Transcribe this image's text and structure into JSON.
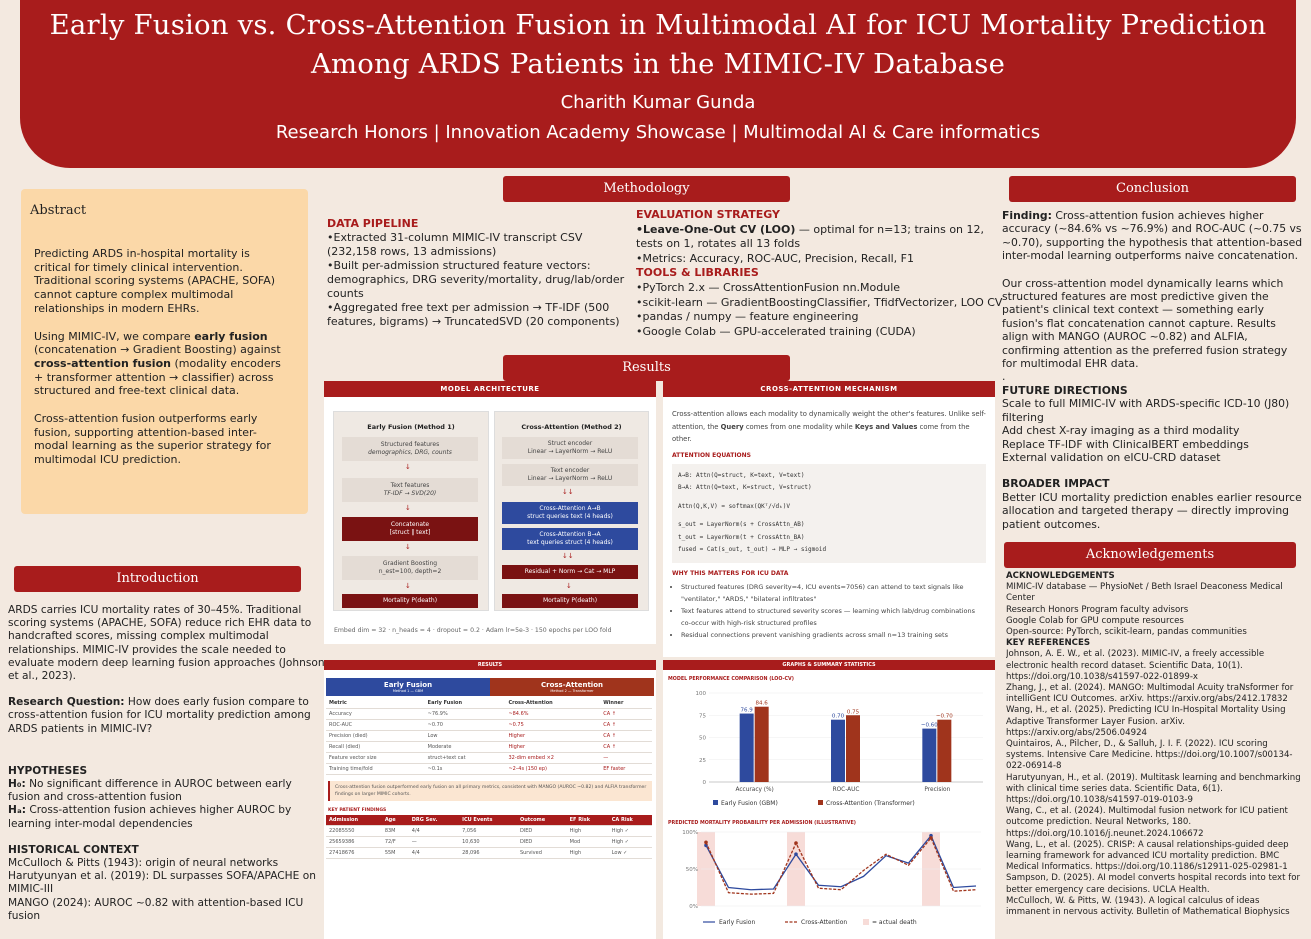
{
  "header": {
    "title_line1": "Early Fusion vs. Cross-Attention Fusion in Multimodal AI for ICU Mortality Prediction",
    "title_line2": "Among ARDS Patients in the MIMIC-IV Database",
    "author": "Charith Kumar Gunda",
    "subtitle": "Research Honors | Innovation Academy Showcase | Multimodal AI & Care informatics"
  },
  "abstract": {
    "title": "Abstract",
    "p1": "Predicting ARDS in-hospital mortality is critical for timely clinical intervention. Traditional scoring systems (APACHE, SOFA) cannot capture complex multimodal relationships in modern EHRs.",
    "p2_a": "Using MIMIC-IV, we compare ",
    "p2_b": "early fusion",
    "p2_c": " (concatenation → Gradient Boosting) against ",
    "p2_d": "cross-attention fusion",
    "p2_e": " (modality encoders + transformer attention → classifier) across structured and free-text clinical data.",
    "p3": "Cross-attention fusion outperforms early fusion, supporting attention-based inter-modal learning as the superior strategy for multimodal ICU prediction."
  },
  "introduction": {
    "title": "Introduction",
    "p1": "ARDS carries ICU mortality rates of 30–45%. Traditional scoring systems (APACHE, SOFA) reduce rich EHR data to handcrafted scores, missing complex multimodal relationships. MIMIC-IV provides the scale needed to evaluate modern deep learning fusion approaches (Johnson et al., 2023).",
    "rq_label": "Research Question:",
    "rq": " How does early fusion compare to cross-attention fusion for ICU mortality prediction among ARDS patients in MIMIC-IV?",
    "hyp_title": "HYPOTHESES",
    "h0_label": "H₀:",
    "h0": " No significant difference in AUROC between early fusion and cross-attention fusion",
    "ha_label": "Hₐ:",
    "ha": " Cross-attention fusion achieves higher AUROC by learning inter-modal dependencies",
    "hist_title": "HISTORICAL CONTEXT",
    "hist1": "McCulloch & Pitts (1943): origin of neural networks",
    "hist2": "Harutyunyan et al. (2019): DL surpasses SOFA/APACHE on MIMIC-III",
    "hist3": "MANGO (2024): AUROC ~0.82 with attention-based ICU fusion"
  },
  "methodology": {
    "title": "Methodology",
    "dp_title": "DATA PIPELINE",
    "dp1": "•Extracted 31-column MIMIC-IV transcript CSV (232,158 rows, 13 admissions)",
    "dp2": "•Built per-admission structured feature vectors: demographics, DRG severity/mortality, drug/lab/order counts",
    "dp3": "•Aggregated free text per admission → TF-IDF (500 features, bigrams) → TruncatedSVD (20 components)",
    "es_title": "EVALUATION STRATEGY",
    "es1_b": "•Leave-One-Out CV (LOO)",
    "es1": " — optimal for n=13; trains on 12, tests on 1, rotates all 13 folds",
    "es2": "•Metrics: Accuracy, ROC-AUC, Precision, Recall, F1",
    "tl_title": "TOOLS & LIBRARIES",
    "tl1": "•PyTorch 2.x — CrossAttentionFusion nn.Module",
    "tl2": "•scikit-learn — GradientBoostingClassifier, TfidfVectorizer, LOO CV",
    "tl3": "•pandas / numpy — feature engineering",
    "tl4": "•Google Colab — GPU-accelerated training (CUDA)"
  },
  "results": {
    "title": "Results",
    "arch": {
      "title": "MODEL ARCHITECTURE",
      "early_title": "Early Fusion (Method 1)",
      "e1a": "Structured features",
      "e1b": "demographics, DRG, counts",
      "e2a": "Text features",
      "e2b": "TF-IDF → SVD(20)",
      "e3a": "Concatenate",
      "e3b": "[struct ‖ text]",
      "e4a": "Gradient Boosting",
      "e4b": "n_est=100, depth=2",
      "e5": "Mortality P(death)",
      "cross_title": "Cross-Attention (Method 2)",
      "c1a": "Struct encoder",
      "c1b": "Linear → LayerNorm → ReLU",
      "c2a": "Text encoder",
      "c2b": "Linear → LayerNorm → ReLU",
      "c3a": "Cross-Attention A→B",
      "c3b": "struct queries text (4 heads)",
      "c4a": "Cross-Attention B→A",
      "c4b": "text queries struct (4 heads)",
      "c5": "Residual + Norm → Cat → MLP",
      "c6": "Mortality P(death)",
      "foot": "Embed dim = 32 · n_heads = 4 · dropout = 0.2 · Adam lr=5e-3 · 150 epochs per LOO fold"
    },
    "mech": {
      "title": "CROSS-ATTENTION MECHANISM",
      "p1a": "Cross-attention allows each modality to dynamically weight the other's features. Unlike self-attention, the ",
      "p1b": "Query",
      "p1c": " comes from one modality while ",
      "p1d": "Keys and Values",
      "p1e": " come from the other.",
      "eq_title": "ATTENTION EQUATIONS",
      "eq1": "A→B: Attn(Q=struct, K=text, V=text)",
      "eq2": "B→A: Attn(Q=text, K=struct, V=struct)",
      "eq3": "Attn(Q,K,V) = softmax(QKᵀ/√dₖ)V",
      "eq4": "s_out = LayerNorm(s + CrossAttn_AB)",
      "eq5": "t_out = LayerNorm(t + CrossAttn_BA)",
      "eq6": "fused = Cat(s_out, t_out) → MLP → sigmoid",
      "why_title": "WHY THIS MATTERS FOR ICU DATA",
      "w1": "Structured features (DRG severity=4, ICU events=7056) can attend to text signals like \"ventilator,\" \"ARDS,\" \"bilateral infiltrates\"",
      "w2": "Text features attend to structured severity scores — learning which lab/drug combinations co-occur with high-risk structured profiles",
      "w3": "Residual connections prevent vanishing gradients across small n=13 training sets"
    },
    "table": {
      "title": "RESULTS",
      "early": "Early Fusion",
      "early_sub": "Method 1 — GBM",
      "cross": "Cross-Attention",
      "cross_sub": "Method 2 — Transformer",
      "headers": [
        "Metric",
        "Early Fusion",
        "Cross-Attention",
        "Winner"
      ],
      "rows": [
        [
          "Accuracy",
          "~76.9%",
          "~84.6%",
          "CA ↑"
        ],
        [
          "ROC-AUC",
          "~0.70",
          "~0.75",
          "CA ↑"
        ],
        [
          "Precision (died)",
          "Low",
          "Higher",
          "CA ↑"
        ],
        [
          "Recall (died)",
          "Moderate",
          "Higher",
          "CA ↑"
        ],
        [
          "Feature vector size",
          "struct+text cat",
          "32-dim embed ×2",
          "—"
        ],
        [
          "Training time/fold",
          "~0.1s",
          "~2–4s (150 ep)",
          "EF faster"
        ]
      ],
      "note": "Cross-attention fusion outperformed early fusion on all primary metrics, consistent with MANGO (AUROC ~0.82) and ALFIA transformer findings on larger MIMIC cohorts.",
      "kp_title": "KEY PATIENT FINDINGS",
      "kp_headers": [
        "Admission",
        "Age",
        "DRG Sev.",
        "ICU Events",
        "Outcome",
        "EF Risk",
        "CA Risk"
      ],
      "kp_rows": [
        [
          "22085550",
          "83M",
          "4/4",
          "7,056",
          "DIED",
          "High",
          "High ✓"
        ],
        [
          "25659386",
          "72/F",
          "—",
          "10,630",
          "DIED",
          "Mod",
          "High ✓"
        ],
        [
          "27418676",
          "55M",
          "4/4",
          "28,096",
          "Survived",
          "High",
          "Low ✓"
        ]
      ]
    },
    "charts": {
      "title": "GRAPHS & SUMMARY STATISTICS",
      "bar_title": "MODEL PERFORMANCE COMPARISON (LOO-CV)",
      "line_title": "PREDICTED MORTALITY PROBABILITY PER ADMISSION (ILLUSTRATIVE)"
    }
  },
  "conclusion": {
    "title": "Conclusion",
    "finding_label": "Finding:",
    "finding": " Cross-attention fusion achieves higher accuracy (~84.6% vs ~76.9%) and ROC-AUC (~0.75 vs ~0.70), supporting the hypothesis that attention-based inter-modal learning outperforms naive concatenation.",
    "p2": "Our cross-attention model dynamically learns which structured features are most predictive given the patient's clinical text context — something early fusion's flat concatenation cannot capture. Results align with MANGO (AUROC ~0.82) and ALFIA, confirming attention as the preferred fusion strategy for multimodal EHR data.",
    "dot": ".",
    "fd_title": "FUTURE DIRECTIONS",
    "fd1": "Scale to full MIMIC-IV with ARDS-specific ICD-10 (J80) filtering",
    "fd2": "Add chest X-ray imaging as a third modality",
    "fd3": "Replace TF-IDF with ClinicalBERT embeddings",
    "fd4": "External validation on eICU-CRD dataset",
    "bi_title": "BROADER IMPACT",
    "bi": "Better ICU mortality prediction enables earlier resource allocation and targeted therapy — directly improving patient outcomes."
  },
  "ack": {
    "title": "Acknowledgements",
    "ack_title": "ACKNOWLEDGEMENTS",
    "a1": "MIMIC-IV database — PhysioNet / Beth Israel Deaconess Medical Center",
    "a2": "Research Honors Program faculty advisors",
    "a3": "Google Colab for GPU compute resources",
    "a4": "Open-source: PyTorch, scikit-learn, pandas communities",
    "kr_title": "KEY REFERENCES",
    "r1": "Johnson, A. E. W., et al. (2023). MIMIC-IV, a freely accessible electronic health record dataset. Scientific Data, 10(1). https://doi.org/10.1038/s41597-022-01899-x",
    "r2": "Zhang, J., et al. (2024). MANGO: Multimodal Acuity traNsformer for intelliGent ICU Outcomes. arXiv. https://arxiv.org/abs/2412.17832",
    "r3": "Wang, H., et al. (2025). Predicting ICU In-Hospital Mortality Using Adaptive Transformer Layer Fusion. arXiv. https://arxiv.org/abs/2506.04924",
    "r4": "Quintairos, A., Pilcher, D., & Salluh, J. I. F. (2022). ICU scoring systems. Intensive Care Medicine. https://doi.org/10.1007/s00134-022-06914-8",
    "r5": "Harutyunyan, H., et al. (2019). Multitask learning and benchmarking with clinical time series data. Scientific Data, 6(1). https://doi.org/10.1038/s41597-019-0103-9",
    "r6": "Wang, C., et al. (2024). Multimodal fusion network for ICU patient outcome prediction. Neural Networks, 180. https://doi.org/10.1016/j.neunet.2024.106672",
    "r7": "Wang, L., et al. (2025). CRISP: A causal relationships-guided deep learning framework for advanced ICU mortality prediction. BMC Medical Informatics. https://doi.org/10.1186/s12911-025-02981-1",
    "r8": "Sampson, D. (2025). AI model converts hospital records into text for better emergency care decisions. UCLA Health.",
    "r9": "McCulloch, W. & Pitts, W. (1943). A logical calculus of ideas immanent in nervous activity. Bulletin of Mathematical Biophysics"
  },
  "chart_data": [
    {
      "type": "bar",
      "title": "MODEL PERFORMANCE COMPARISON (LOO-CV)",
      "categories": [
        "Accuracy (%)",
        "ROC-AUC",
        "Precision"
      ],
      "series": [
        {
          "name": "Early Fusion (GBM)",
          "values": [
            76.9,
            0.7,
            0.6
          ],
          "labels": [
            "76.9",
            "0.70",
            "~0.60"
          ]
        },
        {
          "name": "Cross-Attention (Transformer)",
          "values": [
            84.6,
            0.75,
            0.7
          ],
          "labels": [
            "84.6",
            "0.75",
            "~0.70"
          ]
        }
      ],
      "yticks": [
        0,
        25,
        50,
        75,
        100
      ],
      "ylim": [
        0,
        100
      ],
      "colors": [
        "#2e4a9e",
        "#a0341c"
      ],
      "legend": "bottom"
    },
    {
      "type": "line",
      "title": "PREDICTED MORTALITY PROBABILITY PER ADMISSION (ILLUSTRATIVE)",
      "yticks": [
        "0%",
        "50%",
        "100%"
      ],
      "ylim": [
        0,
        1
      ],
      "series": [
        {
          "name": "Early Fusion",
          "values": [
            0.82,
            0.25,
            0.22,
            0.23,
            0.7,
            0.28,
            0.26,
            0.4,
            0.68,
            0.58,
            0.95,
            0.25,
            0.27
          ]
        },
        {
          "name": "Cross-Attention",
          "values": [
            0.86,
            0.18,
            0.16,
            0.17,
            0.85,
            0.24,
            0.22,
            0.48,
            0.7,
            0.55,
            0.92,
            0.2,
            0.22
          ]
        }
      ],
      "actual_death_index": [
        0,
        4,
        10
      ],
      "legend": [
        "Early Fusion",
        "Cross-Attention",
        "= actual death"
      ]
    }
  ]
}
